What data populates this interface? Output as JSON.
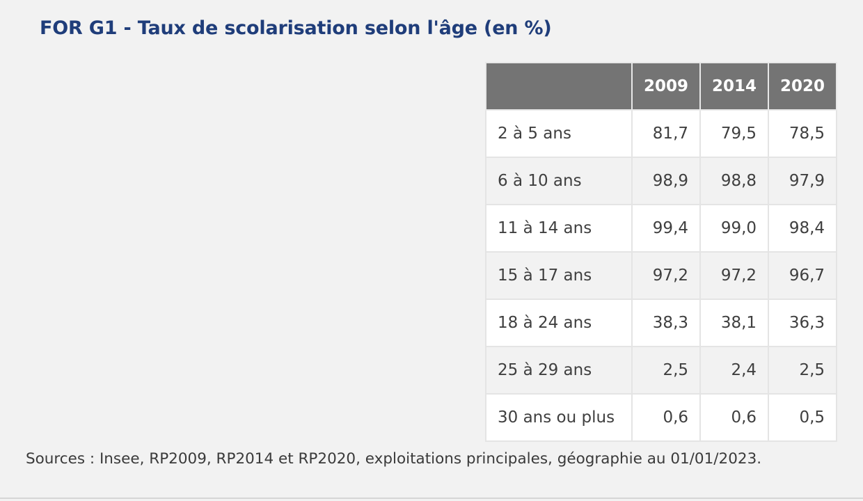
{
  "title": "FOR G1 - Taux de scolarisation selon l'âge (en %)",
  "table": {
    "corner": "",
    "headers": [
      "2009",
      "2014",
      "2020"
    ],
    "rows": [
      {
        "label": "2 à 5 ans",
        "values": [
          "81,7",
          "79,5",
          "78,5"
        ]
      },
      {
        "label": "6 à 10 ans",
        "values": [
          "98,9",
          "98,8",
          "97,9"
        ]
      },
      {
        "label": "11 à 14 ans",
        "values": [
          "99,4",
          "99,0",
          "98,4"
        ]
      },
      {
        "label": "15 à 17 ans",
        "values": [
          "97,2",
          "97,2",
          "96,7"
        ]
      },
      {
        "label": "18 à 24 ans",
        "values": [
          "38,3",
          "38,1",
          "36,3"
        ]
      },
      {
        "label": "25 à 29 ans",
        "values": [
          "2,5",
          "2,4",
          "2,5"
        ]
      },
      {
        "label": "30 ans ou plus",
        "values": [
          "0,6",
          "0,6",
          "0,5"
        ]
      }
    ]
  },
  "source": "Sources : Insee, RP2009, RP2014 et RP2020, exploitations principales, géographie au 01/01/2023.",
  "colors": {
    "title": "#1f3d7a",
    "header_background": "#747474",
    "page_background": "#f2f2f2"
  }
}
